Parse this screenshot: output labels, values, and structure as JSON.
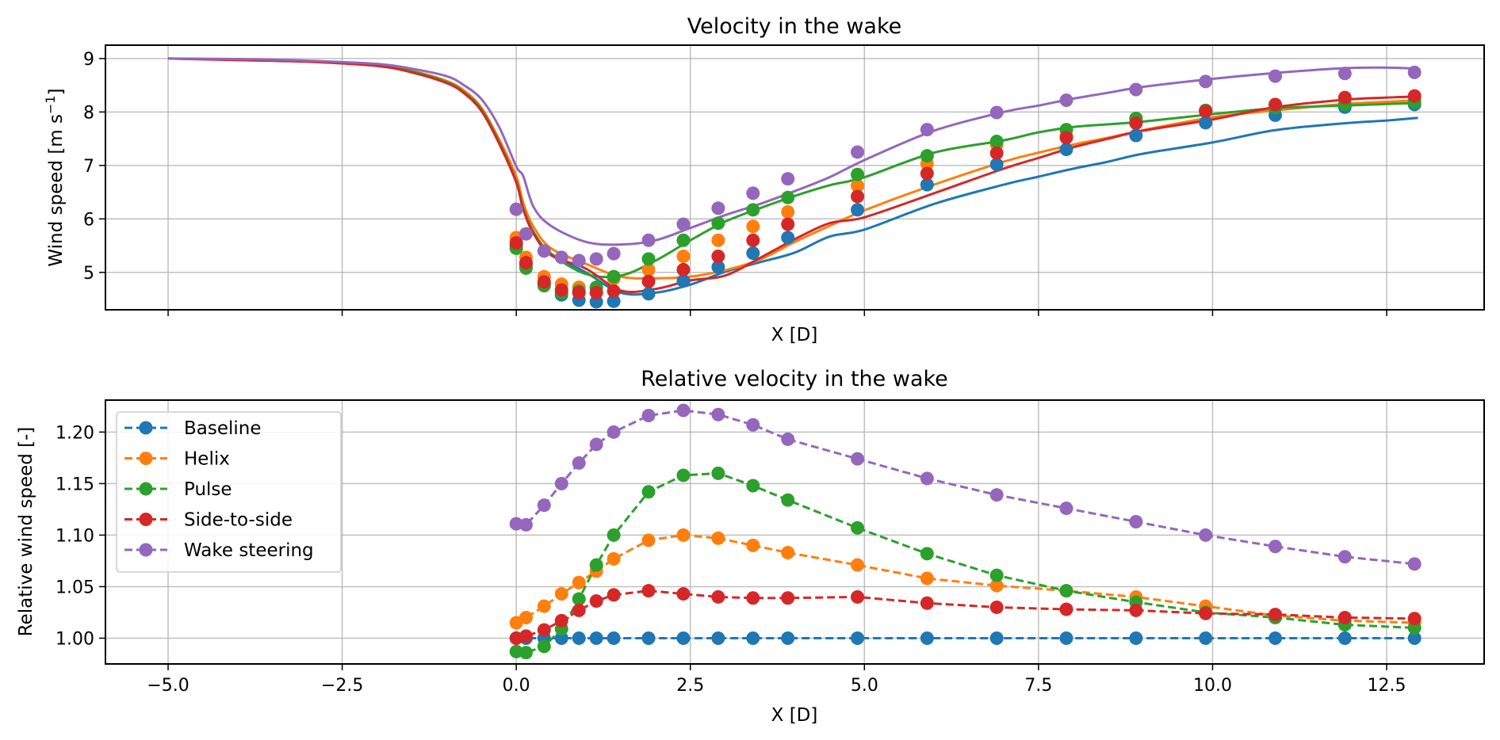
{
  "chart_data": [
    {
      "type": "line",
      "title": "Velocity in the wake",
      "xlabel": "X [D]",
      "ylabel": "Wind speed [m s",
      "ylabel_superscript": "−1",
      "ylabel_suffix": "]",
      "xlim": [
        -5.9,
        13.9
      ],
      "ylim": [
        4.3,
        9.25
      ],
      "xticks": [
        -5.0,
        -2.5,
        0.0,
        2.5,
        5.0,
        7.5,
        10.0,
        12.5
      ],
      "xtick_labels_visible": false,
      "yticks": [
        5,
        6,
        7,
        8,
        9
      ],
      "ytick_labels": [
        "5",
        "6",
        "7",
        "8",
        "9"
      ],
      "grid": true,
      "line_x": [
        -5.0,
        -4.0,
        -3.0,
        -2.0,
        -1.5,
        -1.0,
        -0.75,
        -0.5,
        -0.25,
        0.0,
        0.1,
        0.25,
        0.5,
        1.0,
        1.5,
        2.0,
        2.5,
        3.0,
        3.5,
        4.0,
        4.5,
        5.0,
        6.0,
        7.0,
        7.5,
        8.0,
        8.5,
        9.0,
        10.0,
        10.9,
        11.9,
        12.5,
        12.95
      ],
      "marker_x": [
        0.0,
        0.14,
        0.4,
        0.65,
        0.9,
        1.15,
        1.4,
        1.9,
        2.4,
        2.9,
        3.4,
        3.9,
        4.9,
        5.9,
        6.9,
        7.9,
        8.9,
        9.9,
        10.9,
        11.9,
        12.9
      ],
      "series": [
        {
          "name": "Baseline",
          "color": "#1f77b4",
          "line": [
            9.0,
            8.98,
            8.95,
            8.87,
            8.76,
            8.56,
            8.37,
            8.05,
            7.45,
            6.7,
            6.2,
            5.75,
            5.35,
            5.0,
            4.62,
            4.62,
            4.77,
            5.01,
            5.19,
            5.37,
            5.67,
            5.8,
            6.28,
            6.64,
            6.79,
            6.94,
            7.07,
            7.22,
            7.43,
            7.66,
            7.79,
            7.84,
            7.89
          ],
          "markers": [
            5.5,
            5.13,
            4.78,
            4.58,
            4.48,
            4.45,
            4.46,
            4.6,
            4.84,
            5.1,
            5.36,
            5.65,
            6.17,
            6.64,
            7.02,
            7.3,
            7.56,
            7.8,
            7.94,
            8.09,
            8.14
          ]
        },
        {
          "name": "Helix",
          "color": "#ff7f0e",
          "line": [
            9.0,
            8.98,
            8.95,
            8.88,
            8.77,
            8.58,
            8.4,
            8.08,
            7.5,
            6.8,
            6.3,
            5.85,
            5.45,
            5.16,
            4.92,
            4.89,
            4.92,
            5.04,
            5.24,
            5.57,
            5.87,
            6.16,
            6.64,
            7.07,
            7.24,
            7.39,
            7.52,
            7.66,
            7.9,
            8.03,
            8.15,
            8.19,
            8.22
          ],
          "markers": [
            5.65,
            5.28,
            4.92,
            4.78,
            4.72,
            4.7,
            4.88,
            5.05,
            5.3,
            5.6,
            5.86,
            6.13,
            6.62,
            7.03,
            7.39,
            7.55,
            7.88,
            8.03,
            8.12,
            8.16,
            8.24
          ]
        },
        {
          "name": "Pulse",
          "color": "#2ca02c",
          "line": [
            9.0,
            8.98,
            8.95,
            8.87,
            8.76,
            8.56,
            8.37,
            8.05,
            7.45,
            6.7,
            6.2,
            5.75,
            5.35,
            4.97,
            4.94,
            5.22,
            5.6,
            5.95,
            6.2,
            6.43,
            6.63,
            6.78,
            7.24,
            7.47,
            7.62,
            7.72,
            7.77,
            7.82,
            7.96,
            8.07,
            8.12,
            8.15,
            8.17
          ],
          "markers": [
            5.45,
            5.08,
            4.75,
            4.62,
            4.65,
            4.72,
            4.92,
            5.25,
            5.6,
            5.92,
            6.17,
            6.4,
            6.83,
            7.18,
            7.45,
            7.67,
            7.88,
            8.03,
            8.08,
            8.14,
            8.18
          ]
        },
        {
          "name": "Side-to-side",
          "color": "#d62728",
          "line": [
            9.0,
            8.97,
            8.94,
            8.86,
            8.74,
            8.54,
            8.35,
            8.02,
            7.42,
            6.68,
            6.18,
            5.72,
            5.32,
            5.07,
            4.66,
            4.69,
            4.85,
            4.94,
            5.27,
            5.62,
            5.92,
            6.03,
            6.48,
            6.94,
            7.14,
            7.34,
            7.5,
            7.65,
            7.86,
            8.09,
            8.23,
            8.27,
            8.29
          ],
          "markers": [
            5.55,
            5.18,
            4.82,
            4.67,
            4.62,
            4.62,
            4.65,
            4.83,
            5.05,
            5.3,
            5.6,
            5.9,
            6.42,
            6.85,
            7.23,
            7.52,
            7.79,
            8.01,
            8.14,
            8.27,
            8.3
          ]
        },
        {
          "name": "Wake steering",
          "color": "#9467bd",
          "line": [
            9.0,
            8.99,
            8.96,
            8.9,
            8.81,
            8.67,
            8.5,
            8.24,
            7.73,
            6.98,
            6.8,
            6.22,
            5.87,
            5.57,
            5.52,
            5.6,
            5.83,
            6.07,
            6.28,
            6.52,
            6.78,
            7.1,
            7.65,
            8.0,
            8.12,
            8.25,
            8.36,
            8.47,
            8.62,
            8.73,
            8.82,
            8.83,
            8.81
          ],
          "markers": [
            6.18,
            5.72,
            5.4,
            5.28,
            5.22,
            5.25,
            5.35,
            5.6,
            5.9,
            6.2,
            6.48,
            6.75,
            7.25,
            7.67,
            7.99,
            8.22,
            8.42,
            8.57,
            8.67,
            8.72,
            8.74
          ]
        }
      ]
    },
    {
      "type": "line",
      "title": "Relative velocity in the wake",
      "xlabel": "X [D]",
      "ylabel": "Relative wind speed [-]",
      "xlim": [
        -5.9,
        13.9
      ],
      "ylim": [
        0.975,
        1.231
      ],
      "xticks": [
        -5.0,
        -2.5,
        0.0,
        2.5,
        5.0,
        7.5,
        10.0,
        12.5
      ],
      "xtick_labels": [
        "−5.0",
        "−2.5",
        "0.0",
        "2.5",
        "5.0",
        "7.5",
        "10.0",
        "12.5"
      ],
      "yticks": [
        1.0,
        1.05,
        1.1,
        1.15,
        1.2
      ],
      "ytick_labels": [
        "1.00",
        "1.05",
        "1.10",
        "1.15",
        "1.20"
      ],
      "grid": true,
      "legend_position": "top-left",
      "line_style": "dashed with circle markers",
      "x": [
        0.0,
        0.14,
        0.4,
        0.65,
        0.9,
        1.15,
        1.4,
        1.9,
        2.4,
        2.9,
        3.4,
        3.9,
        4.9,
        5.9,
        6.9,
        7.9,
        8.9,
        9.9,
        10.9,
        11.9,
        12.9
      ],
      "series": [
        {
          "name": "Baseline",
          "color": "#1f77b4",
          "values": [
            1.0,
            1.0,
            1.0,
            1.0,
            1.0,
            1.0,
            1.0,
            1.0,
            1.0,
            1.0,
            1.0,
            1.0,
            1.0,
            1.0,
            1.0,
            1.0,
            1.0,
            1.0,
            1.0,
            1.0,
            1.0
          ]
        },
        {
          "name": "Helix",
          "color": "#ff7f0e",
          "values": [
            1.015,
            1.02,
            1.031,
            1.043,
            1.054,
            1.065,
            1.077,
            1.095,
            1.1,
            1.097,
            1.09,
            1.083,
            1.071,
            1.058,
            1.051,
            1.046,
            1.04,
            1.031,
            1.022,
            1.017,
            1.015
          ]
        },
        {
          "name": "Pulse",
          "color": "#2ca02c",
          "values": [
            0.987,
            0.986,
            0.992,
            1.009,
            1.038,
            1.071,
            1.1,
            1.142,
            1.158,
            1.16,
            1.148,
            1.134,
            1.107,
            1.082,
            1.061,
            1.046,
            1.035,
            1.025,
            1.02,
            1.013,
            1.01
          ]
        },
        {
          "name": "Side-to-side",
          "color": "#d62728",
          "values": [
            1.0,
            1.002,
            1.008,
            1.017,
            1.027,
            1.036,
            1.042,
            1.046,
            1.043,
            1.04,
            1.039,
            1.039,
            1.04,
            1.034,
            1.03,
            1.028,
            1.027,
            1.024,
            1.023,
            1.02,
            1.019
          ]
        },
        {
          "name": "Wake steering",
          "color": "#9467bd",
          "values": [
            1.111,
            1.11,
            1.129,
            1.15,
            1.17,
            1.188,
            1.2,
            1.216,
            1.221,
            1.217,
            1.207,
            1.193,
            1.174,
            1.155,
            1.139,
            1.126,
            1.113,
            1.1,
            1.089,
            1.079,
            1.072
          ]
        }
      ]
    }
  ]
}
